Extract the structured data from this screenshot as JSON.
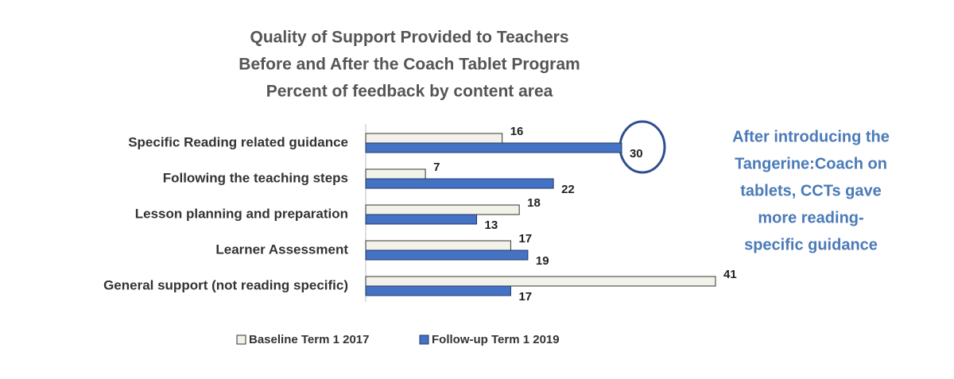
{
  "chart_data": {
    "type": "hbar",
    "title": [
      "Quality of Support Provided to Teachers",
      "Before and After the Coach Tablet Program",
      "Percent of  feedback by content area"
    ],
    "categories": [
      "Specific Reading related guidance",
      "Following the teaching steps",
      "Lesson planning and preparation",
      "Learner Assessment",
      "General support (not reading specific)"
    ],
    "series": [
      {
        "name": "Baseline Term 1 2017",
        "color": "#f2f2ea",
        "values": [
          16,
          7,
          18,
          17,
          41
        ]
      },
      {
        "name": "Follow-up Term 1 2019",
        "color": "#4472c4",
        "values": [
          30,
          22,
          13,
          19,
          17
        ]
      }
    ],
    "annotation": [
      "After introducing the",
      "Tangerine:Coach on",
      "tablets, CCTs gave",
      "more reading-",
      "specific guidance"
    ],
    "legend": "bottom"
  }
}
